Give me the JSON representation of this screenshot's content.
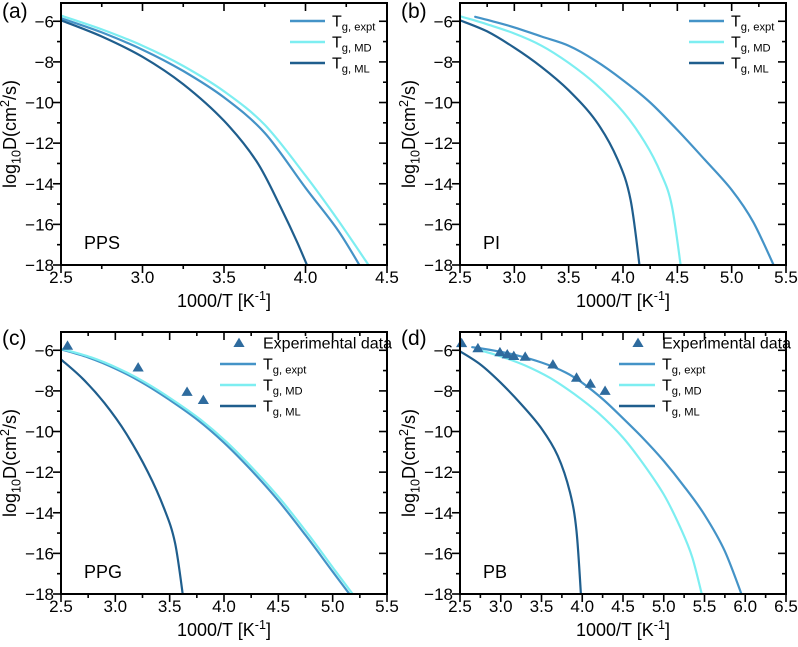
{
  "figure": {
    "background": "#ffffff",
    "text_color": "#000000",
    "axis_color": "#000000"
  },
  "chart_data": [
    {
      "type": "line",
      "panel_letter": "(a)",
      "sample": "PPS",
      "xlabel": [
        {
          "t": "1000/T [K"
        },
        {
          "t": "-1",
          "sup": true
        },
        {
          "t": "]"
        }
      ],
      "ylabel": [
        {
          "t": "log"
        },
        {
          "t": "10",
          "sub": true
        },
        {
          "t": "D(cm"
        },
        {
          "t": "2",
          "sup": true
        },
        {
          "t": "/s)"
        }
      ],
      "xlim": [
        2.5,
        4.5
      ],
      "ylim": [
        -18,
        -5.1
      ],
      "xticks": [
        2.5,
        3.0,
        3.5,
        4.0,
        4.5
      ],
      "xtick_labels": [
        "2.5",
        "3.0",
        "3.5",
        "4.0",
        "4.5"
      ],
      "xticks_minor": [
        2.75,
        3.25,
        3.75,
        4.25
      ],
      "yticks": [
        -6,
        -8,
        -10,
        -12,
        -14,
        -16,
        -18
      ],
      "ytick_labels": [
        "−6",
        "−8",
        "−10",
        "−12",
        "−14",
        "−16",
        "−18"
      ],
      "yticks_minor": [
        -7,
        -9,
        -11,
        -13,
        -15,
        -17
      ],
      "grid": false,
      "legend_position": "top-right",
      "series": [
        {
          "key": "expt",
          "label": [
            {
              "t": "T"
            },
            {
              "t": "g, expt",
              "sub": true
            }
          ],
          "color": "#4493c7",
          "points": [
            [
              2.5,
              -5.85
            ],
            [
              2.75,
              -6.55
            ],
            [
              3.0,
              -7.4
            ],
            [
              3.25,
              -8.45
            ],
            [
              3.5,
              -9.75
            ],
            [
              3.75,
              -11.5
            ],
            [
              4.0,
              -14.2
            ],
            [
              4.2,
              -16.3
            ],
            [
              4.36,
              -18.4
            ]
          ]
        },
        {
          "key": "md",
          "label": [
            {
              "t": "T"
            },
            {
              "t": "g, MD",
              "sub": true
            }
          ],
          "color": "#7deef1",
          "points": [
            [
              2.5,
              -5.72
            ],
            [
              2.75,
              -6.4
            ],
            [
              3.0,
              -7.2
            ],
            [
              3.25,
              -8.2
            ],
            [
              3.5,
              -9.45
            ],
            [
              3.75,
              -11.1
            ],
            [
              4.0,
              -13.6
            ],
            [
              4.2,
              -15.8
            ],
            [
              4.42,
              -18.4
            ]
          ]
        },
        {
          "key": "ml",
          "label": [
            {
              "t": "T"
            },
            {
              "t": "g, ML",
              "sub": true
            }
          ],
          "color": "#1f5e8d",
          "points": [
            [
              2.5,
              -5.95
            ],
            [
              2.75,
              -6.75
            ],
            [
              3.0,
              -7.75
            ],
            [
              3.25,
              -9.1
            ],
            [
              3.5,
              -10.9
            ],
            [
              3.7,
              -12.9
            ],
            [
              3.85,
              -15.2
            ],
            [
              3.95,
              -16.9
            ],
            [
              4.03,
              -18.4
            ]
          ]
        }
      ]
    },
    {
      "type": "line",
      "panel_letter": "(b)",
      "sample": "PI",
      "xlabel": [
        {
          "t": "1000/T [K"
        },
        {
          "t": "-1",
          "sup": true
        },
        {
          "t": "]"
        }
      ],
      "ylabel": [
        {
          "t": "log"
        },
        {
          "t": "10",
          "sub": true
        },
        {
          "t": "D(cm"
        },
        {
          "t": "2",
          "sup": true
        },
        {
          "t": "/s)"
        }
      ],
      "xlim": [
        2.5,
        5.5
      ],
      "ylim": [
        -18,
        -5.1
      ],
      "xticks": [
        2.5,
        3.0,
        3.5,
        4.0,
        4.5,
        5.0,
        5.5
      ],
      "xtick_labels": [
        "2.5",
        "3.0",
        "3.5",
        "4.0",
        "4.5",
        "5.0",
        "5.5"
      ],
      "xticks_minor": [
        2.75,
        3.25,
        3.75,
        4.25,
        4.75,
        5.25
      ],
      "yticks": [
        -6,
        -8,
        -10,
        -12,
        -14,
        -16,
        -18
      ],
      "ytick_labels": [
        "−6",
        "−8",
        "−10",
        "−12",
        "−14",
        "−16",
        "−18"
      ],
      "yticks_minor": [
        -7,
        -9,
        -11,
        -13,
        -15,
        -17
      ],
      "grid": false,
      "legend_position": "top-right",
      "series": [
        {
          "key": "expt",
          "label": [
            {
              "t": "T"
            },
            {
              "t": "g, expt",
              "sub": true
            }
          ],
          "color": "#4493c7",
          "points": [
            [
              2.64,
              -5.78
            ],
            [
              2.8,
              -6.0
            ],
            [
              3.0,
              -6.3
            ],
            [
              3.25,
              -6.75
            ],
            [
              3.5,
              -7.2
            ],
            [
              3.75,
              -7.95
            ],
            [
              4.0,
              -8.9
            ],
            [
              4.25,
              -10.0
            ],
            [
              4.5,
              -11.35
            ],
            [
              4.75,
              -12.8
            ],
            [
              5.0,
              -14.3
            ],
            [
              5.2,
              -15.9
            ],
            [
              5.42,
              -18.4
            ]
          ]
        },
        {
          "key": "md",
          "label": [
            {
              "t": "T"
            },
            {
              "t": "g, MD",
              "sub": true
            }
          ],
          "color": "#7deef1",
          "points": [
            [
              2.5,
              -5.75
            ],
            [
              2.75,
              -6.15
            ],
            [
              3.0,
              -6.6
            ],
            [
              3.25,
              -7.2
            ],
            [
              3.5,
              -8.05
            ],
            [
              3.75,
              -9.1
            ],
            [
              4.0,
              -10.45
            ],
            [
              4.2,
              -11.95
            ],
            [
              4.35,
              -13.5
            ],
            [
              4.45,
              -15.1
            ],
            [
              4.54,
              -18.4
            ]
          ]
        },
        {
          "key": "ml",
          "label": [
            {
              "t": "T"
            },
            {
              "t": "g, ML",
              "sub": true
            }
          ],
          "color": "#1f5e8d",
          "points": [
            [
              2.5,
              -5.95
            ],
            [
              2.75,
              -6.5
            ],
            [
              3.0,
              -7.3
            ],
            [
              3.25,
              -8.25
            ],
            [
              3.5,
              -9.4
            ],
            [
              3.75,
              -10.9
            ],
            [
              3.95,
              -12.8
            ],
            [
              4.07,
              -14.8
            ],
            [
              4.16,
              -18.4
            ]
          ]
        }
      ]
    },
    {
      "type": "line",
      "panel_letter": "(c)",
      "sample": "PPG",
      "xlabel": [
        {
          "t": "1000/T [K"
        },
        {
          "t": "-1",
          "sup": true
        },
        {
          "t": "]"
        }
      ],
      "ylabel": [
        {
          "t": "log"
        },
        {
          "t": "10",
          "sub": true
        },
        {
          "t": "D(cm"
        },
        {
          "t": "2",
          "sup": true
        },
        {
          "t": "/s)"
        }
      ],
      "xlim": [
        2.5,
        5.5
      ],
      "ylim": [
        -18,
        -5.1
      ],
      "xticks": [
        2.5,
        3.0,
        3.5,
        4.0,
        4.5,
        5.0,
        5.5
      ],
      "xtick_labels": [
        "2.5",
        "3.0",
        "3.5",
        "4.0",
        "4.5",
        "5.0",
        "5.5"
      ],
      "xticks_minor": [
        2.75,
        3.25,
        3.75,
        4.25,
        4.75,
        5.25
      ],
      "yticks": [
        -6,
        -8,
        -10,
        -12,
        -14,
        -16,
        -18
      ],
      "ytick_labels": [
        "−6",
        "−8",
        "−10",
        "−12",
        "−14",
        "−16",
        "−18"
      ],
      "yticks_minor": [
        -7,
        -9,
        -11,
        -13,
        -15,
        -17
      ],
      "grid": false,
      "legend_position": "top-right",
      "scatter": {
        "key": "exp",
        "label": [
          {
            "t": "Experimental data"
          }
        ],
        "color": "#2e6b9e",
        "points": [
          [
            2.56,
            -5.78
          ],
          [
            3.21,
            -6.85
          ],
          [
            3.66,
            -8.05
          ],
          [
            3.81,
            -8.45
          ]
        ]
      },
      "series": [
        {
          "key": "expt",
          "label": [
            {
              "t": "T"
            },
            {
              "t": "g, expt",
              "sub": true
            }
          ],
          "color": "#4493c7",
          "points": [
            [
              2.5,
              -5.95
            ],
            [
              2.75,
              -6.35
            ],
            [
              3.0,
              -6.9
            ],
            [
              3.25,
              -7.6
            ],
            [
              3.5,
              -8.45
            ],
            [
              3.75,
              -9.4
            ],
            [
              4.0,
              -10.55
            ],
            [
              4.25,
              -11.9
            ],
            [
              4.5,
              -13.4
            ],
            [
              4.75,
              -15.1
            ],
            [
              5.0,
              -16.9
            ],
            [
              5.21,
              -18.4
            ]
          ]
        },
        {
          "key": "md",
          "label": [
            {
              "t": "T"
            },
            {
              "t": "g, MD",
              "sub": true
            }
          ],
          "color": "#7deef1",
          "points": [
            [
              2.5,
              -5.92
            ],
            [
              2.78,
              -6.35
            ],
            [
              3.03,
              -6.9
            ],
            [
              3.28,
              -7.6
            ],
            [
              3.53,
              -8.45
            ],
            [
              3.78,
              -9.4
            ],
            [
              4.03,
              -10.55
            ],
            [
              4.28,
              -11.9
            ],
            [
              4.53,
              -13.4
            ],
            [
              4.78,
              -15.1
            ],
            [
              5.03,
              -16.9
            ],
            [
              5.24,
              -18.4
            ]
          ]
        },
        {
          "key": "ml",
          "label": [
            {
              "t": "T"
            },
            {
              "t": "g, ML",
              "sub": true
            }
          ],
          "color": "#1f5e8d",
          "points": [
            [
              2.5,
              -6.45
            ],
            [
              2.7,
              -7.4
            ],
            [
              2.9,
              -8.6
            ],
            [
              3.1,
              -10.1
            ],
            [
              3.3,
              -12.0
            ],
            [
              3.45,
              -13.8
            ],
            [
              3.55,
              -15.5
            ],
            [
              3.63,
              -18.4
            ]
          ]
        }
      ]
    },
    {
      "type": "line",
      "panel_letter": "(d)",
      "sample": "PB",
      "xlabel": [
        {
          "t": "1000/T [K"
        },
        {
          "t": "-1",
          "sup": true
        },
        {
          "t": "]"
        }
      ],
      "ylabel": [
        {
          "t": "log"
        },
        {
          "t": "10",
          "sub": true
        },
        {
          "t": "D(cm"
        },
        {
          "t": "2",
          "sup": true
        },
        {
          "t": "/s)"
        }
      ],
      "xlim": [
        2.5,
        6.5
      ],
      "ylim": [
        -18,
        -5.1
      ],
      "xticks": [
        2.5,
        3.0,
        3.5,
        4.0,
        4.5,
        5.0,
        5.5,
        6.0,
        6.5
      ],
      "xtick_labels": [
        "2.5",
        "3.0",
        "3.5",
        "4.0",
        "4.5",
        "5.0",
        "5.5",
        "6.0",
        "6.5"
      ],
      "xticks_minor": [
        2.75,
        3.25,
        3.75,
        4.25,
        4.75,
        5.25,
        5.75,
        6.25
      ],
      "yticks": [
        -6,
        -8,
        -10,
        -12,
        -14,
        -16,
        -18
      ],
      "ytick_labels": [
        "−6",
        "−8",
        "−10",
        "−12",
        "−14",
        "−16",
        "−18"
      ],
      "yticks_minor": [
        -7,
        -9,
        -11,
        -13,
        -15,
        -17
      ],
      "grid": false,
      "legend_position": "top-right",
      "scatter": {
        "key": "exp",
        "label": [
          {
            "t": "Experimental data"
          }
        ],
        "color": "#2e6b9e",
        "points": [
          [
            2.52,
            -5.65
          ],
          [
            2.72,
            -5.9
          ],
          [
            2.99,
            -6.1
          ],
          [
            3.08,
            -6.2
          ],
          [
            3.16,
            -6.28
          ],
          [
            3.3,
            -6.32
          ],
          [
            3.64,
            -6.7
          ],
          [
            3.93,
            -7.35
          ],
          [
            4.1,
            -7.65
          ],
          [
            4.28,
            -8.0
          ]
        ]
      },
      "series": [
        {
          "key": "expt",
          "label": [
            {
              "t": "T"
            },
            {
              "t": "g, expt",
              "sub": true
            }
          ],
          "color": "#4493c7",
          "points": [
            [
              2.65,
              -5.85
            ],
            [
              2.9,
              -6.0
            ],
            [
              3.2,
              -6.25
            ],
            [
              3.5,
              -6.6
            ],
            [
              3.8,
              -7.1
            ],
            [
              4.0,
              -7.6
            ],
            [
              4.25,
              -8.4
            ],
            [
              4.5,
              -9.35
            ],
            [
              4.75,
              -10.35
            ],
            [
              5.0,
              -11.45
            ],
            [
              5.25,
              -12.7
            ],
            [
              5.5,
              -14.1
            ],
            [
              5.75,
              -15.9
            ],
            [
              5.99,
              -18.4
            ]
          ]
        },
        {
          "key": "md",
          "label": [
            {
              "t": "T"
            },
            {
              "t": "g, MD",
              "sub": true
            }
          ],
          "color": "#7deef1",
          "points": [
            [
              2.7,
              -5.95
            ],
            [
              3.0,
              -6.3
            ],
            [
              3.3,
              -6.75
            ],
            [
              3.6,
              -7.35
            ],
            [
              3.9,
              -8.15
            ],
            [
              4.2,
              -9.1
            ],
            [
              4.5,
              -10.3
            ],
            [
              4.75,
              -11.6
            ],
            [
              5.0,
              -13.1
            ],
            [
              5.2,
              -14.7
            ],
            [
              5.35,
              -16.2
            ],
            [
              5.49,
              -18.4
            ]
          ]
        },
        {
          "key": "ml",
          "label": [
            {
              "t": "T"
            },
            {
              "t": "g, ML",
              "sub": true
            }
          ],
          "color": "#1f5e8d",
          "points": [
            [
              2.5,
              -6.05
            ],
            [
              2.75,
              -6.7
            ],
            [
              3.0,
              -7.6
            ],
            [
              3.25,
              -8.65
            ],
            [
              3.5,
              -9.85
            ],
            [
              3.7,
              -11.2
            ],
            [
              3.85,
              -13.0
            ],
            [
              3.93,
              -14.9
            ],
            [
              3.99,
              -18.4
            ]
          ]
        }
      ]
    }
  ]
}
